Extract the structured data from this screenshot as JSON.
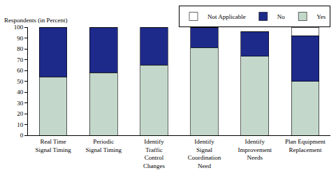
{
  "chart_data": {
    "type": "bar",
    "stacked": true,
    "y_label": "Respondents (in Percent)",
    "categories": [
      "Real Time Signal Timing",
      "Periodic Signal Timing",
      "Identify Traffic Control Changes",
      "Identify Signal Coordination Need",
      "Identify Improvement Needs",
      "Plan Equipment Replacement"
    ],
    "series": [
      {
        "name": "Yes",
        "color": "#c3d8cb",
        "values": [
          54,
          58,
          65,
          81,
          73,
          50
        ]
      },
      {
        "name": "No",
        "color": "#1e2a8a",
        "values": [
          46,
          42,
          35,
          19,
          23,
          42
        ]
      },
      {
        "name": "Not Applicable",
        "color": "#ffffff",
        "values": [
          0,
          0,
          0,
          0,
          0,
          8
        ]
      }
    ],
    "ylim": [
      0,
      100
    ],
    "yticks": [
      0,
      10,
      20,
      30,
      40,
      50,
      60,
      70,
      80,
      90,
      100
    ],
    "grid": false,
    "legend": "top right"
  }
}
